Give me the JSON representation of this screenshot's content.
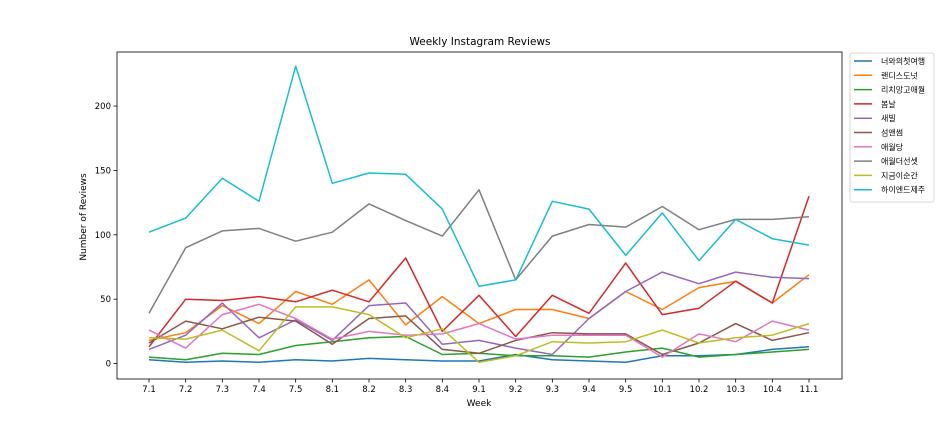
{
  "chart_data": {
    "type": "line",
    "title": "Weekly Instagram Reviews",
    "xlabel": "Week",
    "ylabel": "Number of Reviews",
    "ylim": [
      -12,
      242
    ],
    "yticks": [
      0,
      50,
      100,
      150,
      200
    ],
    "grid": false,
    "legend_position": "right",
    "categories": [
      "7.1",
      "7.2",
      "7.3",
      "7.4",
      "7.5",
      "8.1",
      "8.2",
      "8.3",
      "8.4",
      "9.1",
      "9.2",
      "9.3",
      "9.4",
      "9.5",
      "10.1",
      "10.2",
      "10.3",
      "10.4",
      "11.1"
    ],
    "series": [
      {
        "name": "너와의첫여행",
        "color": "#1f77b4",
        "values": [
          3,
          1,
          2,
          1,
          3,
          2,
          4,
          3,
          2,
          2,
          7,
          3,
          2,
          1,
          6,
          6,
          7,
          11,
          13
        ]
      },
      {
        "name": "랜디스도넛",
        "color": "#ff7f0e",
        "values": [
          18,
          24,
          45,
          31,
          56,
          46,
          65,
          30,
          52,
          31,
          42,
          42,
          35,
          56,
          42,
          59,
          64,
          47,
          69
        ]
      },
      {
        "name": "리치망고애월",
        "color": "#2ca02c",
        "values": [
          5,
          3,
          8,
          7,
          14,
          17,
          20,
          21,
          7,
          8,
          6,
          6,
          5,
          9,
          12,
          5,
          7,
          9,
          11
        ]
      },
      {
        "name": "봄날",
        "color": "#d62728",
        "values": [
          13,
          50,
          49,
          52,
          48,
          57,
          48,
          82,
          25,
          53,
          21,
          53,
          39,
          78,
          38,
          43,
          64,
          47,
          130
        ]
      },
      {
        "name": "새빌",
        "color": "#9467bd",
        "values": [
          11,
          22,
          47,
          20,
          34,
          18,
          45,
          47,
          15,
          18,
          12,
          7,
          35,
          56,
          71,
          62,
          71,
          67,
          66
        ]
      },
      {
        "name": "섬앤썸",
        "color": "#8c564b",
        "values": [
          16,
          33,
          27,
          36,
          33,
          15,
          35,
          37,
          11,
          8,
          18,
          24,
          23,
          23,
          7,
          16,
          31,
          18,
          24
        ]
      },
      {
        "name": "애월당",
        "color": "#e377c2",
        "values": [
          26,
          12,
          38,
          46,
          35,
          19,
          25,
          22,
          23,
          31,
          19,
          22,
          22,
          22,
          5,
          23,
          17,
          33,
          26
        ]
      },
      {
        "name": "애월더선셋",
        "color": "#7f7f7f",
        "values": [
          39,
          90,
          103,
          105,
          95,
          102,
          124,
          111,
          99,
          135,
          65,
          99,
          108,
          106,
          122,
          104,
          112,
          112,
          114
        ]
      },
      {
        "name": "지금이순간",
        "color": "#bcbd22",
        "values": [
          20,
          19,
          26,
          10,
          44,
          44,
          38,
          20,
          27,
          1,
          6,
          17,
          16,
          17,
          26,
          16,
          20,
          22,
          31
        ]
      },
      {
        "name": "하이엔드제주",
        "color": "#17becf",
        "values": [
          102,
          113,
          144,
          126,
          231,
          140,
          148,
          147,
          120,
          60,
          65,
          126,
          120,
          84,
          117,
          80,
          112,
          97,
          92
        ]
      }
    ]
  }
}
